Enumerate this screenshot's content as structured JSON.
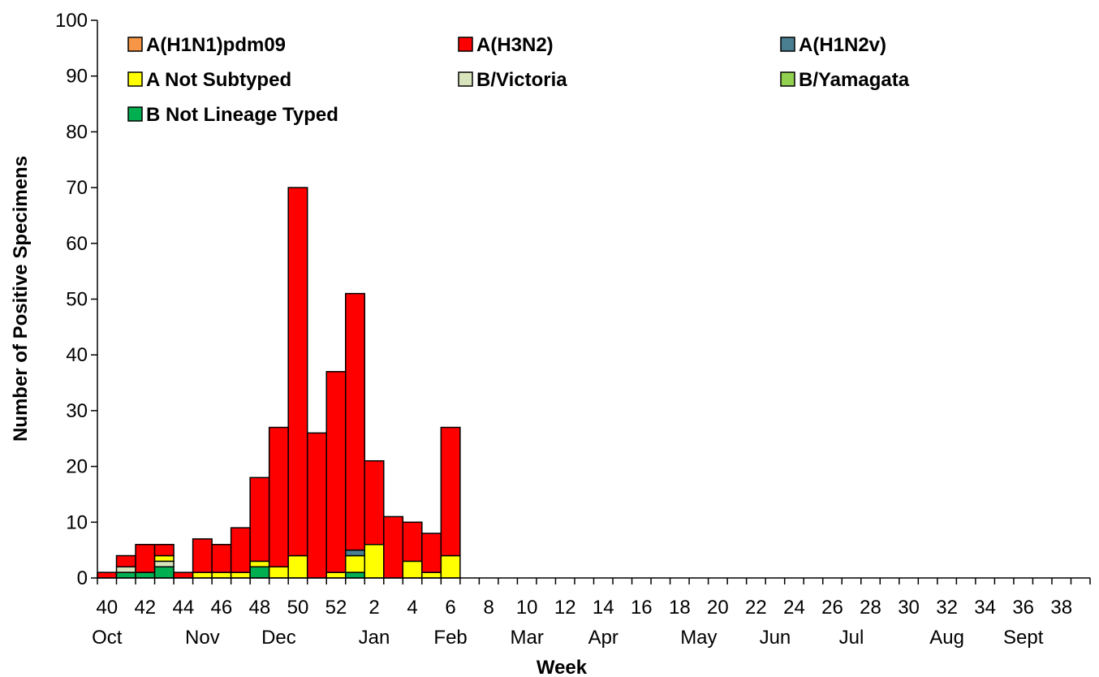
{
  "chart_data": {
    "type": "bar",
    "stacked": true,
    "xlabel": "Week",
    "ylabel": "Number of Positive Specimens",
    "ylim": [
      0,
      100
    ],
    "yticks": [
      0,
      10,
      20,
      30,
      40,
      50,
      60,
      70,
      80,
      90,
      100
    ],
    "grid": false,
    "legend_position": "top-left, inside plot, 3 columns",
    "weeks": [
      40,
      41,
      42,
      43,
      44,
      45,
      46,
      47,
      48,
      49,
      50,
      51,
      52,
      1,
      2,
      3,
      4,
      5,
      6,
      7,
      8,
      9,
      10,
      11,
      12,
      13,
      14,
      15,
      16,
      17,
      18,
      19,
      20,
      21,
      22,
      23,
      24,
      25,
      26,
      27,
      28,
      29,
      30,
      31,
      32,
      33,
      34,
      35,
      36,
      37,
      38,
      39
    ],
    "week_tick_labels": [
      "40",
      "42",
      "44",
      "46",
      "48",
      "50",
      "52",
      "2",
      "4",
      "6",
      "8",
      "10",
      "12",
      "14",
      "16",
      "18",
      "20",
      "22",
      "24",
      "26",
      "28",
      "30",
      "32",
      "34",
      "36",
      "38"
    ],
    "month_labels": [
      {
        "label": "Oct",
        "week": 40
      },
      {
        "label": "Nov",
        "week": 45
      },
      {
        "label": "Dec",
        "week": 49
      },
      {
        "label": "Jan",
        "week": 2
      },
      {
        "label": "Feb",
        "week": 6
      },
      {
        "label": "Mar",
        "week": 10
      },
      {
        "label": "Apr",
        "week": 14
      },
      {
        "label": "May",
        "week": 19
      },
      {
        "label": "Jun",
        "week": 23
      },
      {
        "label": "Jul",
        "week": 27
      },
      {
        "label": "Aug",
        "week": 32
      },
      {
        "label": "Sept",
        "week": 36
      }
    ],
    "series": [
      {
        "name": "A(H1N1)pdm09",
        "color": "#F79646",
        "values": [
          0,
          0,
          0,
          0,
          0,
          0,
          0,
          0,
          0,
          0,
          0,
          0,
          0,
          0,
          0,
          0,
          0,
          0,
          0,
          0,
          0,
          0,
          0,
          0,
          0,
          0,
          0,
          0,
          0,
          0,
          0,
          0,
          0,
          0,
          0,
          0,
          0,
          0,
          0,
          0,
          0,
          0,
          0,
          0,
          0,
          0,
          0,
          0,
          0,
          0,
          0,
          0
        ]
      },
      {
        "name": "A(H3N2)",
        "color": "#FF0000",
        "values": [
          1,
          2,
          5,
          2,
          1,
          6,
          5,
          8,
          15,
          25,
          66,
          26,
          36,
          46,
          15,
          11,
          7,
          7,
          23,
          0,
          0,
          0,
          0,
          0,
          0,
          0,
          0,
          0,
          0,
          0,
          0,
          0,
          0,
          0,
          0,
          0,
          0,
          0,
          0,
          0,
          0,
          0,
          0,
          0,
          0,
          0,
          0,
          0,
          0,
          0,
          0,
          0
        ]
      },
      {
        "name": "A(H1N2v)",
        "color": "#4A7F92",
        "values": [
          0,
          0,
          0,
          0,
          0,
          0,
          0,
          0,
          0,
          0,
          0,
          0,
          0,
          1,
          0,
          0,
          0,
          0,
          0,
          0,
          0,
          0,
          0,
          0,
          0,
          0,
          0,
          0,
          0,
          0,
          0,
          0,
          0,
          0,
          0,
          0,
          0,
          0,
          0,
          0,
          0,
          0,
          0,
          0,
          0,
          0,
          0,
          0,
          0,
          0,
          0,
          0
        ]
      },
      {
        "name": "A Not Subtyped",
        "color": "#FFFF00",
        "values": [
          0,
          0,
          0,
          1,
          0,
          1,
          1,
          1,
          1,
          2,
          4,
          0,
          1,
          3,
          6,
          0,
          3,
          1,
          4,
          0,
          0,
          0,
          0,
          0,
          0,
          0,
          0,
          0,
          0,
          0,
          0,
          0,
          0,
          0,
          0,
          0,
          0,
          0,
          0,
          0,
          0,
          0,
          0,
          0,
          0,
          0,
          0,
          0,
          0,
          0,
          0,
          0
        ]
      },
      {
        "name": "B/Victoria",
        "color": "#D8E4BC",
        "values": [
          0,
          1,
          0,
          1,
          0,
          0,
          0,
          0,
          0,
          0,
          0,
          0,
          0,
          0,
          0,
          0,
          0,
          0,
          0,
          0,
          0,
          0,
          0,
          0,
          0,
          0,
          0,
          0,
          0,
          0,
          0,
          0,
          0,
          0,
          0,
          0,
          0,
          0,
          0,
          0,
          0,
          0,
          0,
          0,
          0,
          0,
          0,
          0,
          0,
          0,
          0,
          0
        ]
      },
      {
        "name": "B/Yamagata",
        "color": "#92D050",
        "values": [
          0,
          0,
          0,
          0,
          0,
          0,
          0,
          0,
          0,
          0,
          0,
          0,
          0,
          0,
          0,
          0,
          0,
          0,
          0,
          0,
          0,
          0,
          0,
          0,
          0,
          0,
          0,
          0,
          0,
          0,
          0,
          0,
          0,
          0,
          0,
          0,
          0,
          0,
          0,
          0,
          0,
          0,
          0,
          0,
          0,
          0,
          0,
          0,
          0,
          0,
          0,
          0
        ]
      },
      {
        "name": "B Not Lineage Typed",
        "color": "#00B050",
        "values": [
          0,
          1,
          1,
          2,
          0,
          0,
          0,
          0,
          2,
          0,
          0,
          0,
          0,
          1,
          0,
          0,
          0,
          0,
          0,
          0,
          0,
          0,
          0,
          0,
          0,
          0,
          0,
          0,
          0,
          0,
          0,
          0,
          0,
          0,
          0,
          0,
          0,
          0,
          0,
          0,
          0,
          0,
          0,
          0,
          0,
          0,
          0,
          0,
          0,
          0,
          0,
          0
        ]
      }
    ]
  }
}
